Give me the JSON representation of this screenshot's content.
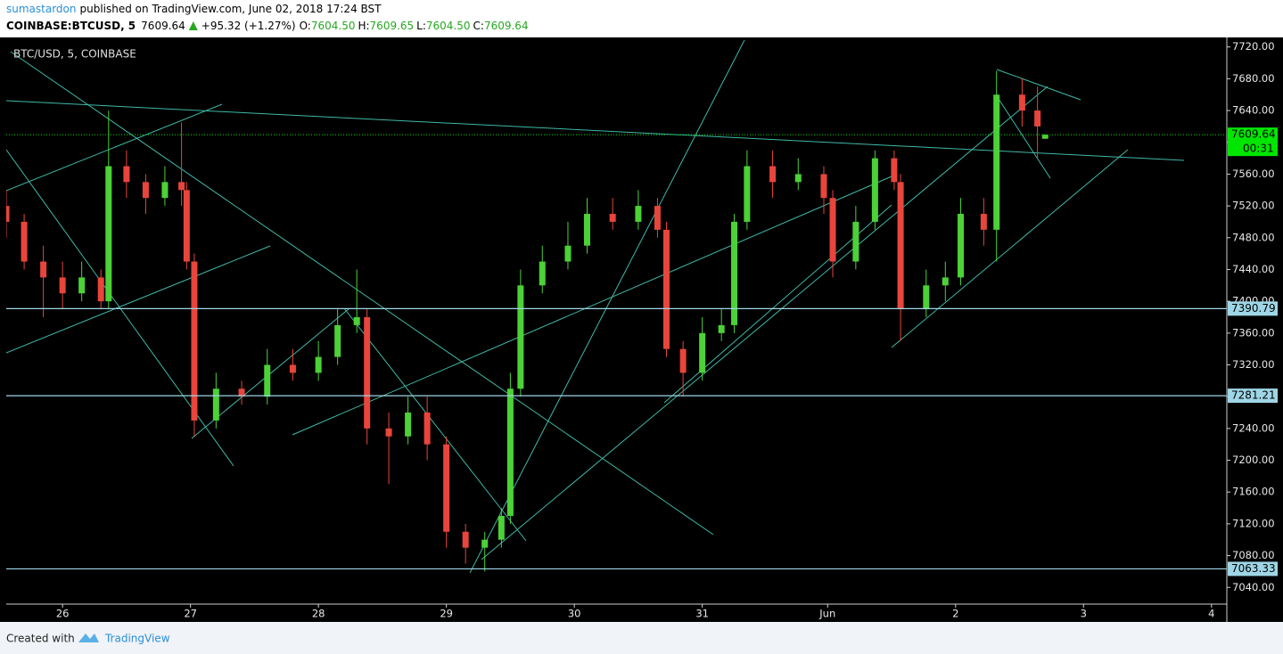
{
  "header": {
    "author": "sumastardon",
    "published": "published on TradingView.com, June 02, 2018 17:24 BST"
  },
  "quote": {
    "symbol": "COINBASE:BTCUSD, 5",
    "last": "7609.64",
    "change": "+95.32 (+1.27%)",
    "open_label": "O:",
    "open": "7604.50",
    "high_label": "H:",
    "high": "7609.65",
    "low_label": "L:",
    "low": "7604.50",
    "close_label": "C:",
    "close": "7609.64"
  },
  "chart_data": {
    "type": "candlestick",
    "legend": "BTC/USD, 5, COINBASE",
    "x": [
      -0.44,
      -0.3,
      -0.15,
      0,
      0.15,
      0.3,
      0.36,
      0.5,
      0.65,
      0.8,
      0.93,
      0.97,
      1.03,
      1.2,
      1.4,
      1.6,
      1.8,
      2.0,
      2.15,
      2.3,
      2.38,
      2.55,
      2.7,
      2.85,
      3.0,
      3.15,
      3.3,
      3.43,
      3.5,
      3.58,
      3.75,
      3.95,
      4.1,
      4.3,
      4.5,
      4.65,
      4.72,
      4.85,
      5.0,
      5.15,
      5.25,
      5.35,
      5.55,
      5.75,
      5.95,
      6.02,
      6.2,
      6.35,
      6.5,
      6.55,
      6.75,
      6.9,
      7.02,
      7.2,
      7.3,
      7.5,
      7.62,
      7.68
    ],
    "open": [
      7520,
      7500,
      7450,
      7430,
      7410,
      7430,
      7400,
      7570,
      7550,
      7530,
      7550,
      7540,
      7450,
      7250,
      7290,
      7280,
      7320,
      7310,
      7330,
      7370,
      7380,
      7240,
      7230,
      7260,
      7220,
      7110,
      7090,
      7100,
      7130,
      7290,
      7420,
      7450,
      7470,
      7510,
      7500,
      7520,
      7490,
      7340,
      7310,
      7360,
      7370,
      7500,
      7570,
      7550,
      7560,
      7530,
      7450,
      7500,
      7580,
      7550,
      7390,
      7420,
      7430,
      7510,
      7490,
      7660,
      7640,
      7604.5
    ],
    "high": [
      7540,
      7510,
      7470,
      7450,
      7450,
      7440,
      7640,
      7590,
      7560,
      7570,
      7625,
      7550,
      7460,
      7310,
      7300,
      7340,
      7340,
      7350,
      7390,
      7440,
      7390,
      7260,
      7280,
      7280,
      7230,
      7120,
      7110,
      7140,
      7310,
      7440,
      7470,
      7500,
      7530,
      7530,
      7540,
      7530,
      7500,
      7350,
      7380,
      7390,
      7510,
      7590,
      7590,
      7580,
      7570,
      7540,
      7520,
      7590,
      7590,
      7560,
      7440,
      7450,
      7530,
      7530,
      7690,
      7680,
      7670,
      7609.65
    ],
    "low": [
      7480,
      7440,
      7380,
      7390,
      7400,
      7390,
      7390,
      7530,
      7510,
      7520,
      7520,
      7440,
      7230,
      7240,
      7270,
      7270,
      7300,
      7300,
      7320,
      7360,
      7220,
      7170,
      7220,
      7200,
      7090,
      7070,
      7060,
      7090,
      7120,
      7280,
      7410,
      7440,
      7460,
      7490,
      7490,
      7480,
      7330,
      7280,
      7300,
      7350,
      7360,
      7490,
      7530,
      7540,
      7510,
      7430,
      7440,
      7490,
      7540,
      7350,
      7380,
      7400,
      7420,
      7470,
      7450,
      7620,
      7580,
      7604.5
    ],
    "close": [
      7500,
      7450,
      7430,
      7410,
      7430,
      7400,
      7570,
      7550,
      7530,
      7550,
      7540,
      7450,
      7250,
      7290,
      7280,
      7320,
      7310,
      7330,
      7370,
      7380,
      7240,
      7230,
      7260,
      7220,
      7110,
      7090,
      7100,
      7130,
      7290,
      7420,
      7450,
      7470,
      7510,
      7500,
      7520,
      7490,
      7340,
      7310,
      7360,
      7370,
      7500,
      7570,
      7550,
      7560,
      7530,
      7450,
      7500,
      7580,
      7550,
      7390,
      7420,
      7430,
      7510,
      7490,
      7660,
      7640,
      7620,
      7609.64
    ],
    "up_color": "#4cd137",
    "down_color": "#e8453c",
    "grid": false,
    "xlim": [
      -0.44,
      9.1
    ],
    "xticks": [
      {
        "value": 0,
        "label": "26"
      },
      {
        "value": 1,
        "label": "27"
      },
      {
        "value": 2,
        "label": "28"
      },
      {
        "value": 3,
        "label": "29"
      },
      {
        "value": 4,
        "label": "30"
      },
      {
        "value": 5,
        "label": "31"
      },
      {
        "value": 5.98,
        "label": "Jun"
      },
      {
        "value": 6.98,
        "label": "2"
      },
      {
        "value": 7.98,
        "label": "3"
      },
      {
        "value": 8.98,
        "label": "4"
      }
    ],
    "ylim": [
      7019,
      7732
    ],
    "yticks": [
      {
        "value": 7040,
        "label": "7040.00"
      },
      {
        "value": 7080,
        "label": "7080.00"
      },
      {
        "value": 7120,
        "label": "7120.00"
      },
      {
        "value": 7160,
        "label": "7160.00"
      },
      {
        "value": 7200,
        "label": "7200.00"
      },
      {
        "value": 7240,
        "label": "7240.00"
      },
      {
        "value": 7280,
        "label": "7280.00"
      },
      {
        "value": 7320,
        "label": "7320.00"
      },
      {
        "value": 7360,
        "label": "7360.00"
      },
      {
        "value": 7400,
        "label": "7400.00"
      },
      {
        "value": 7440,
        "label": "7440.00"
      },
      {
        "value": 7480,
        "label": "7480.00"
      },
      {
        "value": 7520,
        "label": "7520.00"
      },
      {
        "value": 7560,
        "label": "7560.00"
      },
      {
        "value": 7600,
        "label": "7600.00"
      },
      {
        "value": 7640,
        "label": "7640.00"
      },
      {
        "value": 7680,
        "label": "7680.00"
      },
      {
        "value": 7720,
        "label": "7720.00"
      }
    ],
    "levels": [
      7390.79,
      7281.21,
      7063.33
    ],
    "level_color": "#9fd6e6",
    "last_price": 7609.64,
    "last_color": "#00e600",
    "countdown": "00:31"
  },
  "footer": {
    "text": "Created with",
    "brand": "TradingView"
  }
}
